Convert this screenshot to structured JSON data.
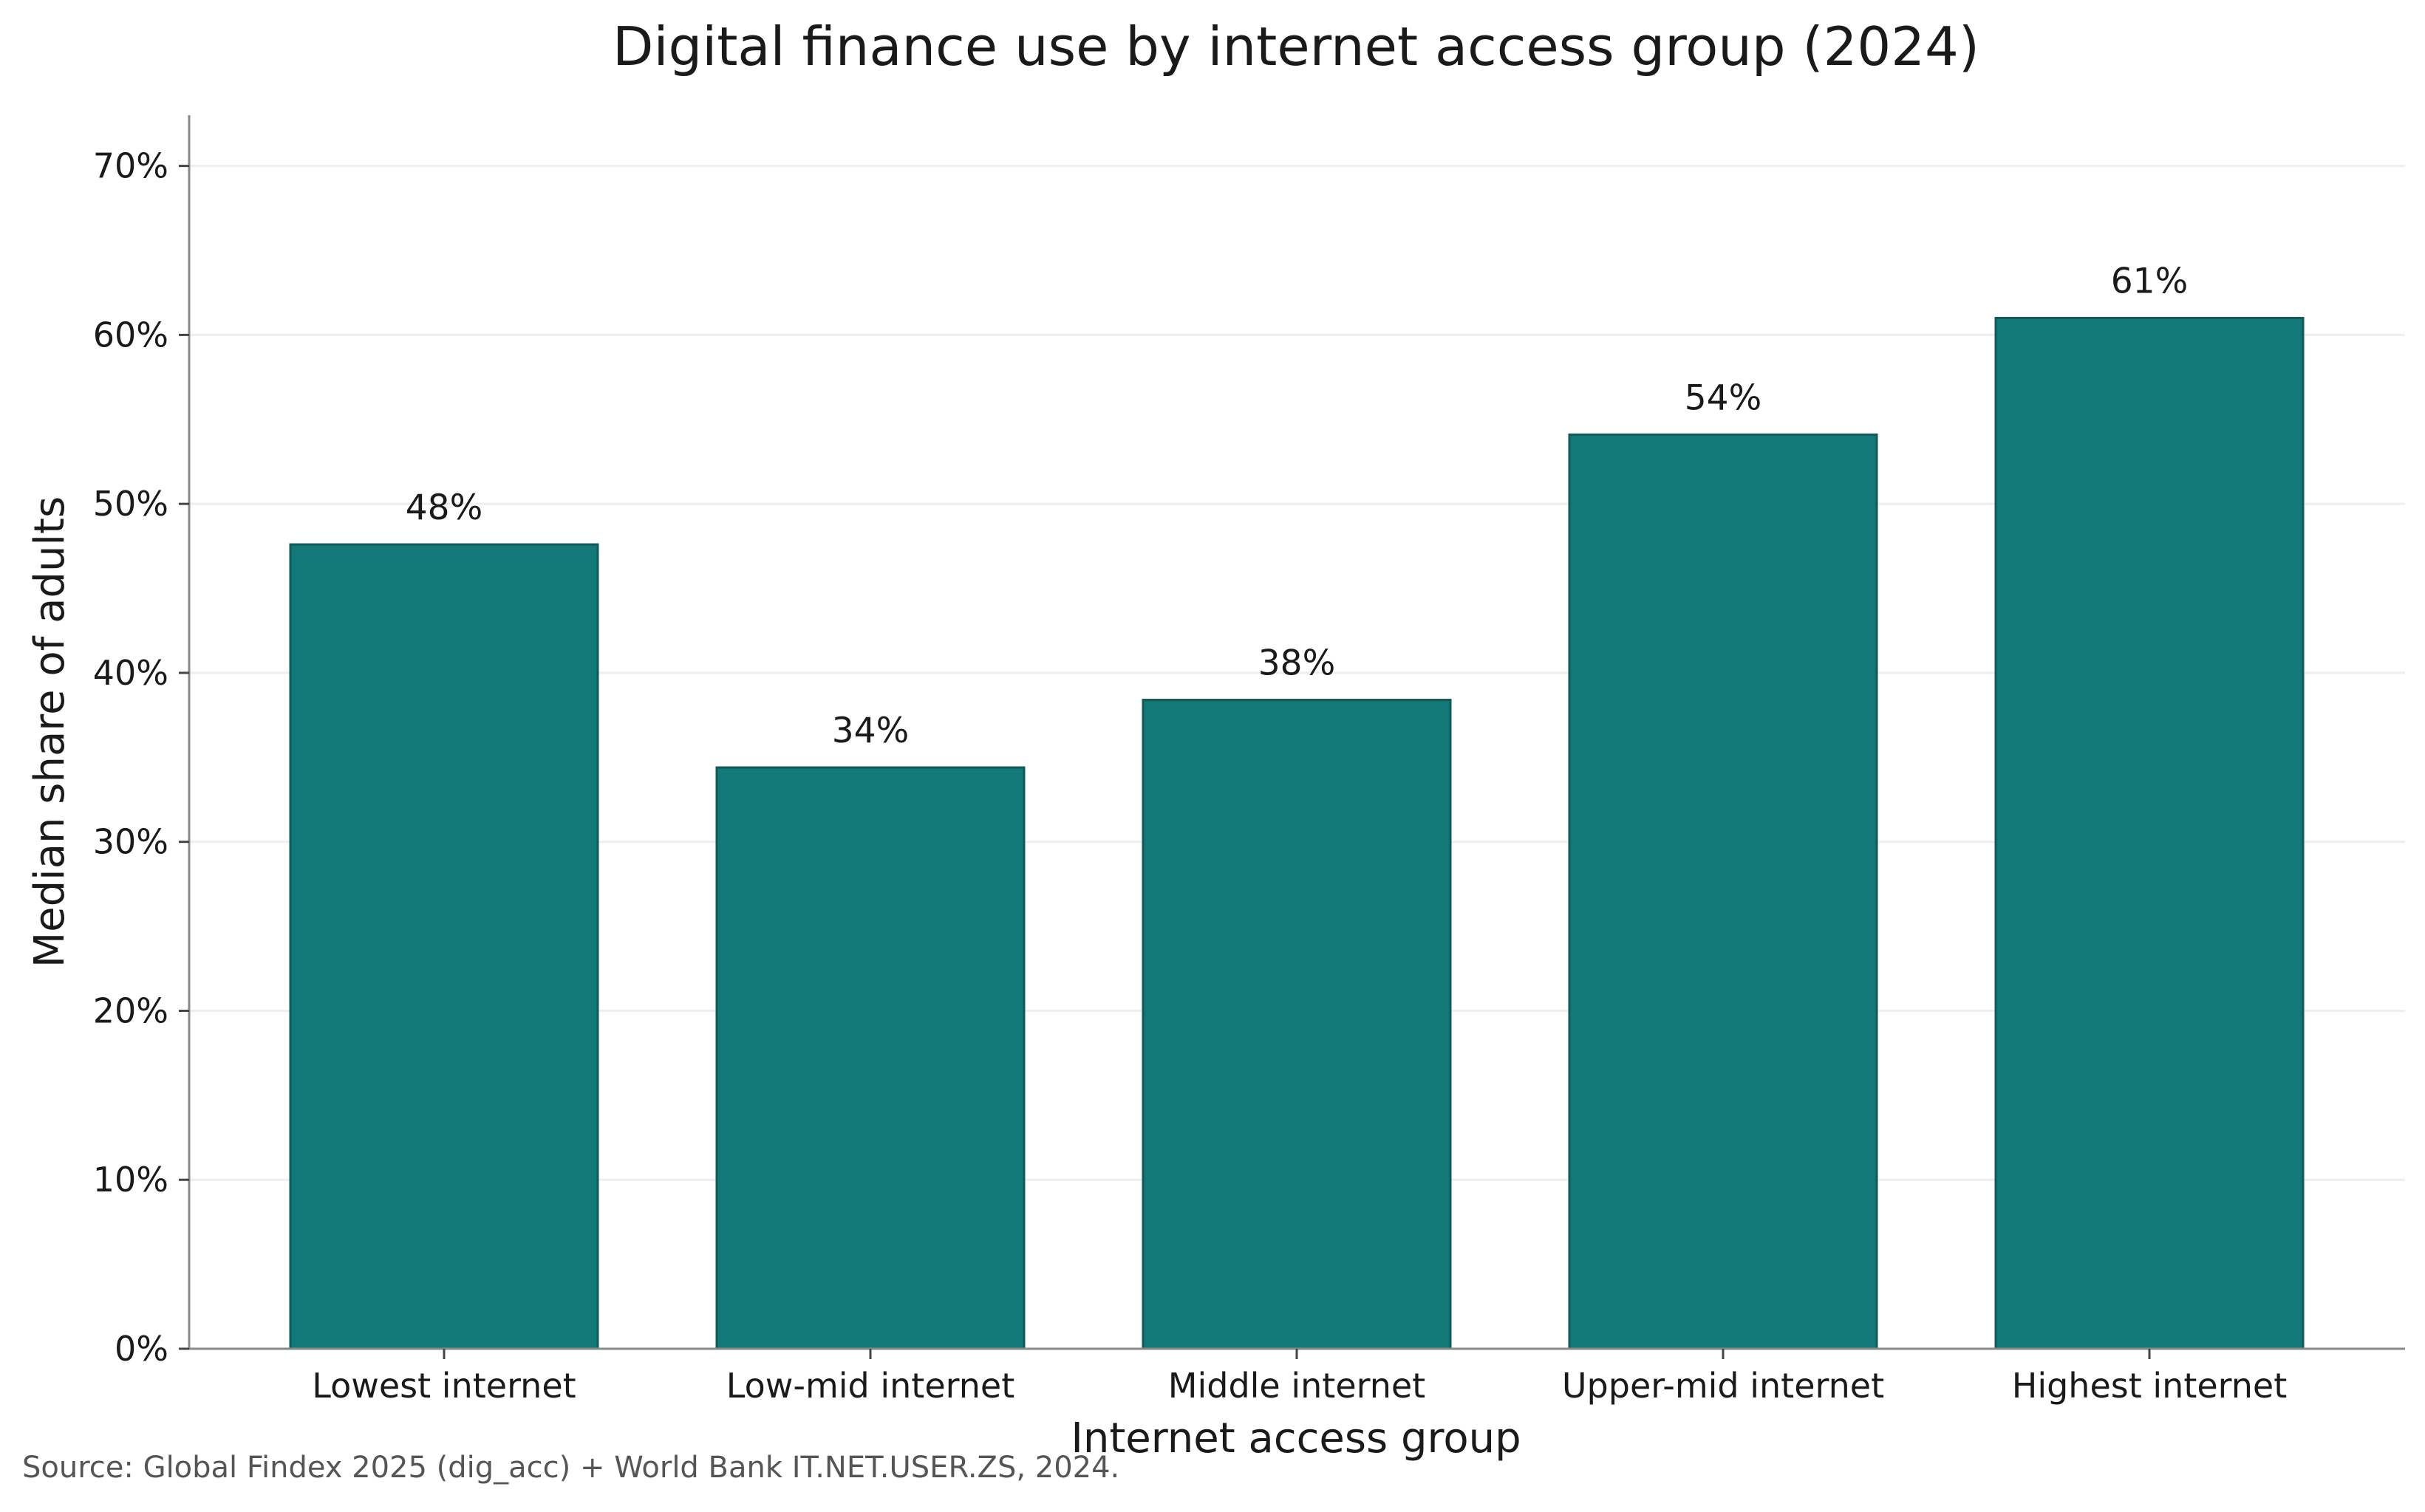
{
  "chart_data": {
    "type": "bar",
    "title": "Digital finance use by internet access group (2024)",
    "xlabel": "Internet access group",
    "ylabel": "Median share of adults",
    "categories": [
      "Lowest internet",
      "Low-mid internet",
      "Middle internet",
      "Upper-mid internet",
      "Highest internet"
    ],
    "values": [
      47.6,
      34.4,
      38.4,
      54.1,
      61.0
    ],
    "value_labels": [
      "48%",
      "34%",
      "38%",
      "54%",
      "61%"
    ],
    "ylim": [
      0,
      73
    ],
    "yticks": [
      0,
      10,
      20,
      30,
      40,
      50,
      60,
      70
    ],
    "ytick_labels": [
      "0%",
      "10%",
      "20%",
      "30%",
      "40%",
      "50%",
      "60%",
      "70%"
    ],
    "grid": "horizontal",
    "legend": "none",
    "bar_color": "#137878",
    "source": "Source: Global Findex 2025 (dig_acc) + World Bank IT.NET.USER.ZS, 2024."
  }
}
